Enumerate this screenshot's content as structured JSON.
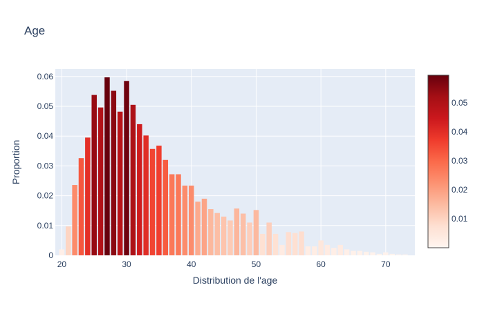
{
  "chart_data": {
    "type": "bar",
    "title": "Age",
    "xlabel": "Distribution de l'age",
    "ylabel": "Proportion",
    "xlim": [
      19,
      74.5
    ],
    "ylim": [
      0,
      0.0625
    ],
    "x_ticks": [
      20,
      30,
      40,
      50,
      60,
      70
    ],
    "y_ticks": [
      0,
      0.01,
      0.02,
      0.03,
      0.04,
      0.05,
      0.06
    ],
    "y_tick_labels": [
      "0",
      "0.01",
      "0.02",
      "0.03",
      "0.04",
      "0.05",
      "0.06"
    ],
    "grid": true,
    "colorscale": "Reds",
    "colorbar": {
      "range": [
        0,
        0.0595
      ],
      "ticks": [
        0.01,
        0.02,
        0.03,
        0.04,
        0.05
      ],
      "tick_labels": [
        "0.01",
        "0.02",
        "0.03",
        "0.04",
        "0.05"
      ]
    },
    "x": [
      20,
      21,
      22,
      23,
      24,
      25,
      26,
      27,
      28,
      29,
      30,
      31,
      32,
      33,
      34,
      35,
      36,
      37,
      38,
      39,
      40,
      41,
      42,
      43,
      44,
      45,
      46,
      47,
      48,
      49,
      50,
      51,
      52,
      53,
      54,
      55,
      56,
      57,
      58,
      59,
      60,
      61,
      62,
      63,
      64,
      65,
      66,
      67,
      68,
      69,
      70,
      71,
      72,
      73
    ],
    "values": [
      0.002,
      0.0097,
      0.0236,
      0.0326,
      0.0395,
      0.0538,
      0.0496,
      0.0597,
      0.0552,
      0.0482,
      0.0585,
      0.0505,
      0.044,
      0.0402,
      0.0357,
      0.0368,
      0.032,
      0.0272,
      0.0272,
      0.0234,
      0.0234,
      0.018,
      0.019,
      0.0155,
      0.0142,
      0.013,
      0.0117,
      0.0157,
      0.014,
      0.011,
      0.0152,
      0.0072,
      0.011,
      0.0072,
      0.0035,
      0.0078,
      0.0075,
      0.008,
      0.003,
      0.003,
      0.005,
      0.0035,
      0.0025,
      0.0035,
      0.002,
      0.0015,
      0.0015,
      0.0012,
      0.001,
      0.0005,
      0.001,
      0.0005,
      0.0003,
      0.0003
    ]
  }
}
